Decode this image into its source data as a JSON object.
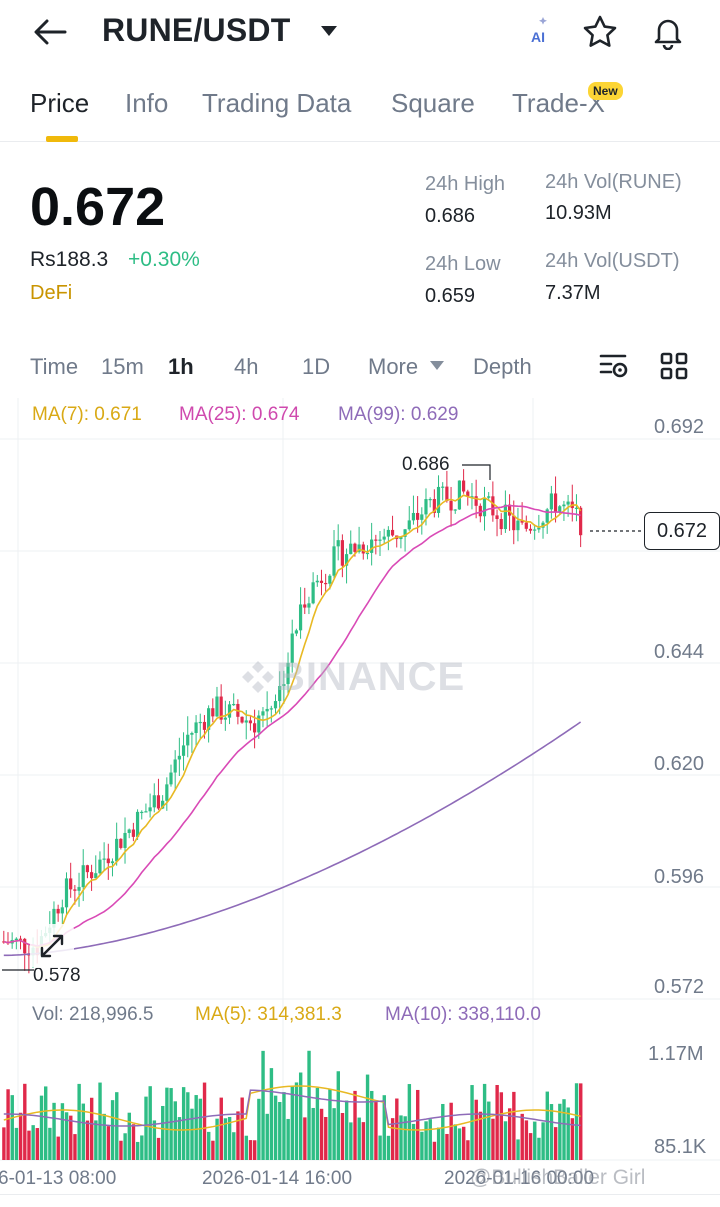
{
  "header": {
    "pair": "RUNE/USDT",
    "ai_label": "AI"
  },
  "tabs": [
    {
      "label": "Price"
    },
    {
      "label": "Info"
    },
    {
      "label": "Trading Data"
    },
    {
      "label": "Square"
    },
    {
      "label": "Trade-X"
    }
  ],
  "new_badge": "New",
  "ticker": {
    "last_price": "0.672",
    "fiat_price": "Rs188.3",
    "change_pct": "+0.30%",
    "category": "DeFi",
    "high_label": "24h High",
    "high_value": "0.686",
    "low_label": "24h Low",
    "low_value": "0.659",
    "vol_base_label": "24h Vol(RUNE)",
    "vol_base_value": "10.93M",
    "vol_quote_label": "24h Vol(USDT)",
    "vol_quote_value": "7.37M"
  },
  "intervals": [
    "Time",
    "15m",
    "1h",
    "4h",
    "1D",
    "More",
    "Depth"
  ],
  "active_interval": "1h",
  "chart_data": {
    "type": "candlestick",
    "ma_legend": {
      "ma7": "MA(7): 0.671",
      "ma25": "MA(25): 0.674",
      "ma99": "MA(99): 0.629"
    },
    "y_ticks": [
      "0.692",
      "0.644",
      "0.620",
      "0.596",
      "0.572"
    ],
    "ylim": [
      0.572,
      0.692
    ],
    "current_price_tag": "0.672",
    "high_marker": "0.686",
    "low_marker": "0.578",
    "watermark": "BINANCE",
    "colors": {
      "up": "#2ebd85",
      "down": "#e0294a",
      "ma7": "#e8b923",
      "ma25": "#d94ab6",
      "ma99": "#8e6bb8"
    },
    "volume": {
      "legend_vol": "Vol: 218,996.5",
      "legend_ma5": "MA(5): 314,381.3",
      "legend_ma10": "MA(10): 338,110.0",
      "y_ticks": [
        "1.17M",
        "85.1K"
      ]
    },
    "x_ticks": [
      "6-01-13 08:00",
      "2026-01-14 16:00",
      "2026-01-16 00:00"
    ]
  },
  "credit": "@BullishBaller Girl"
}
